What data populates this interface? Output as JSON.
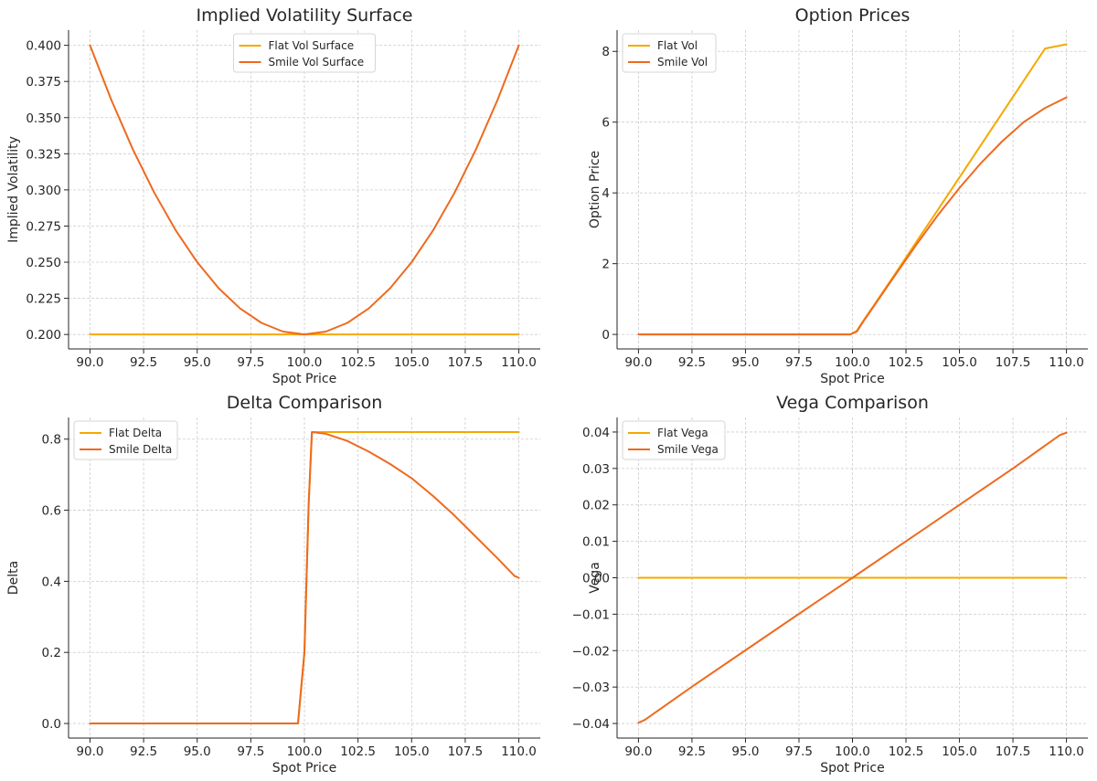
{
  "colors": {
    "flat": "#F5A800",
    "smile": "#EE6A1E",
    "grid": "#cccccc",
    "axis": "#262626"
  },
  "chart_data": [
    {
      "type": "line",
      "title": "Implied Volatility Surface",
      "xlabel": "Spot Price",
      "ylabel": "Implied Volatility",
      "xlim": [
        89.0,
        111.0
      ],
      "ylim": [
        0.19,
        0.4105
      ],
      "xticks": [
        90.0,
        92.5,
        95.0,
        97.5,
        100.0,
        102.5,
        105.0,
        107.5,
        110.0
      ],
      "xtick_labels": [
        "90.0",
        "92.5",
        "95.0",
        "97.5",
        "100.0",
        "102.5",
        "105.0",
        "107.5",
        "110.0"
      ],
      "yticks": [
        0.2,
        0.225,
        0.25,
        0.275,
        0.3,
        0.325,
        0.35,
        0.375,
        0.4
      ],
      "ytick_labels": [
        "0.200",
        "0.225",
        "0.250",
        "0.275",
        "0.300",
        "0.325",
        "0.350",
        "0.375",
        "0.400"
      ],
      "grid": true,
      "legend_position": "top-center",
      "x": [
        90.0,
        91.0,
        92.0,
        93.0,
        94.0,
        95.0,
        96.0,
        97.0,
        98.0,
        99.0,
        100.0,
        101.0,
        102.0,
        103.0,
        104.0,
        105.0,
        106.0,
        107.0,
        108.0,
        109.0,
        110.0
      ],
      "series": [
        {
          "name": "Flat Vol Surface",
          "color": "flat",
          "values": [
            0.2,
            0.2,
            0.2,
            0.2,
            0.2,
            0.2,
            0.2,
            0.2,
            0.2,
            0.2,
            0.2,
            0.2,
            0.2,
            0.2,
            0.2,
            0.2,
            0.2,
            0.2,
            0.2,
            0.2,
            0.2
          ]
        },
        {
          "name": "Smile Vol Surface",
          "color": "smile",
          "values": [
            0.4,
            0.362,
            0.328,
            0.298,
            0.272,
            0.25,
            0.232,
            0.218,
            0.208,
            0.202,
            0.2,
            0.202,
            0.208,
            0.218,
            0.232,
            0.25,
            0.272,
            0.298,
            0.328,
            0.362,
            0.4
          ]
        }
      ]
    },
    {
      "type": "line",
      "title": "Option Prices",
      "xlabel": "Spot Price",
      "ylabel": "Option Price",
      "xlim": [
        89.0,
        111.0
      ],
      "ylim": [
        -0.41,
        8.6
      ],
      "xticks": [
        90.0,
        92.5,
        95.0,
        97.5,
        100.0,
        102.5,
        105.0,
        107.5,
        110.0
      ],
      "xtick_labels": [
        "90.0",
        "92.5",
        "95.0",
        "97.5",
        "100.0",
        "102.5",
        "105.0",
        "107.5",
        "110.0"
      ],
      "yticks": [
        0,
        2,
        4,
        6,
        8
      ],
      "ytick_labels": [
        "0",
        "2",
        "4",
        "6",
        "8"
      ],
      "grid": true,
      "legend_position": "top-left",
      "x": [
        90.0,
        92.0,
        94.0,
        96.0,
        98.0,
        99.9,
        100.2,
        100.5,
        101.0,
        101.5,
        102.0,
        103.0,
        104.0,
        105.0,
        106.0,
        107.0,
        108.0,
        109.0,
        110.0
      ],
      "series": [
        {
          "name": "Flat Vol",
          "color": "flat",
          "values": [
            0,
            0,
            0,
            0,
            0,
            0,
            0.1,
            0.38,
            0.82,
            1.27,
            1.72,
            2.63,
            3.53,
            4.44,
            5.35,
            6.26,
            7.17,
            8.08,
            8.2
          ]
        },
        {
          "name": "Smile Vol",
          "color": "smile",
          "values": [
            0,
            0,
            0,
            0,
            0,
            0,
            0.08,
            0.36,
            0.8,
            1.24,
            1.68,
            2.55,
            3.38,
            4.14,
            4.84,
            5.46,
            6.0,
            6.4,
            6.7
          ]
        }
      ]
    },
    {
      "type": "line",
      "title": "Delta Comparison",
      "xlabel": "Spot Price",
      "ylabel": "Delta",
      "xlim": [
        89.0,
        111.0
      ],
      "ylim": [
        -0.041,
        0.861
      ],
      "xticks": [
        90.0,
        92.5,
        95.0,
        97.5,
        100.0,
        102.5,
        105.0,
        107.5,
        110.0
      ],
      "xtick_labels": [
        "90.0",
        "92.5",
        "95.0",
        "97.5",
        "100.0",
        "102.5",
        "105.0",
        "107.5",
        "110.0"
      ],
      "yticks": [
        0.0,
        0.2,
        0.4,
        0.6,
        0.8
      ],
      "ytick_labels": [
        "0.0",
        "0.2",
        "0.4",
        "0.6",
        "0.8"
      ],
      "grid": true,
      "legend_position": "top-left",
      "x": [
        90.0,
        92.0,
        94.0,
        96.0,
        98.0,
        99.7,
        100.0,
        100.2,
        100.35,
        101.0,
        102.0,
        103.0,
        104.0,
        105.0,
        106.0,
        107.0,
        108.0,
        109.0,
        109.8,
        110.0
      ],
      "series": [
        {
          "name": "Flat Delta",
          "color": "flat",
          "values": [
            0,
            0,
            0,
            0,
            0,
            0,
            0.2,
            0.62,
            0.82,
            0.82,
            0.82,
            0.82,
            0.82,
            0.82,
            0.82,
            0.82,
            0.82,
            0.82,
            0.82,
            0.82
          ]
        },
        {
          "name": "Smile Delta",
          "color": "smile",
          "values": [
            0,
            0,
            0,
            0,
            0,
            0,
            0.2,
            0.62,
            0.82,
            0.815,
            0.795,
            0.765,
            0.73,
            0.69,
            0.64,
            0.585,
            0.525,
            0.465,
            0.415,
            0.41
          ]
        }
      ]
    },
    {
      "type": "line",
      "title": "Vega Comparison",
      "xlabel": "Spot Price",
      "ylabel": "Vega",
      "xlim": [
        89.0,
        111.0
      ],
      "ylim": [
        -0.044,
        0.044
      ],
      "xticks": [
        90.0,
        92.5,
        95.0,
        97.5,
        100.0,
        102.5,
        105.0,
        107.5,
        110.0
      ],
      "xtick_labels": [
        "90.0",
        "92.5",
        "95.0",
        "97.5",
        "100.0",
        "102.5",
        "105.0",
        "107.5",
        "110.0"
      ],
      "yticks": [
        -0.04,
        -0.03,
        -0.02,
        -0.01,
        0.0,
        0.01,
        0.02,
        0.03,
        0.04
      ],
      "ytick_labels": [
        "−0.04",
        "−0.03",
        "−0.02",
        "−0.01",
        "0.00",
        "0.01",
        "0.02",
        "0.03",
        "0.04"
      ],
      "grid": true,
      "legend_position": "top-left",
      "x": [
        90.0,
        90.3,
        92.5,
        95.0,
        97.5,
        100.0,
        102.5,
        105.0,
        107.5,
        109.7,
        110.0
      ],
      "series": [
        {
          "name": "Flat Vega",
          "color": "flat",
          "values": [
            0,
            0,
            0,
            0,
            0,
            0,
            0,
            0,
            0,
            0,
            0
          ]
        },
        {
          "name": "Smile Vega",
          "color": "smile",
          "values": [
            -0.0398,
            -0.039,
            -0.0299,
            -0.0199,
            -0.0099,
            0.0,
            0.01,
            0.02,
            0.03,
            0.0392,
            0.0398
          ]
        }
      ]
    }
  ]
}
